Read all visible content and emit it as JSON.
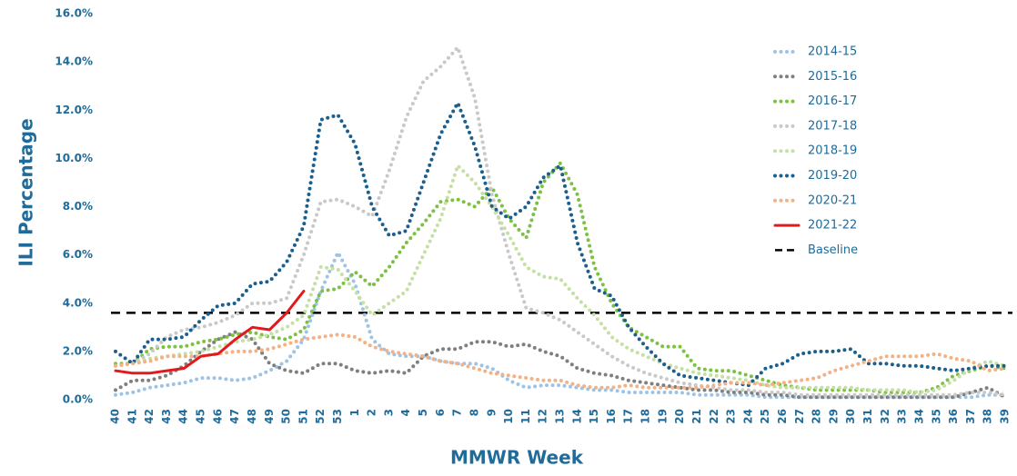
{
  "chart_data": {
    "type": "line",
    "y_label": "ILI Percentage",
    "x_label": "MMWR Week",
    "categories": [
      "40",
      "41",
      "42",
      "43",
      "44",
      "45",
      "46",
      "47",
      "48",
      "49",
      "50",
      "51",
      "52",
      "53",
      "1",
      "2",
      "3",
      "4",
      "5",
      "6",
      "7",
      "8",
      "9",
      "10",
      "11",
      "12",
      "13",
      "14",
      "15",
      "16",
      "17",
      "18",
      "19",
      "20",
      "21",
      "22",
      "23",
      "24",
      "25",
      "26",
      "27",
      "28",
      "29",
      "30",
      "31",
      "32",
      "33",
      "34",
      "35",
      "36",
      "37",
      "38",
      "39"
    ],
    "ylim": [
      0,
      16
    ],
    "yticks": [
      {
        "value": 0,
        "label": "0.0%"
      },
      {
        "value": 2,
        "label": "2.0%"
      },
      {
        "value": 4,
        "label": "4.0%"
      },
      {
        "value": 6,
        "label": "6.0%"
      },
      {
        "value": 8,
        "label": "8.0%"
      },
      {
        "value": 10,
        "label": "10.0%"
      },
      {
        "value": 12,
        "label": "12.0%"
      },
      {
        "value": 14,
        "label": "14.0%"
      },
      {
        "value": 16,
        "label": "16.0%"
      }
    ],
    "series": [
      {
        "name": "2014-15",
        "color": "#9dc3e6",
        "style": "dotted",
        "values": [
          0.2,
          0.3,
          0.5,
          0.6,
          0.7,
          0.9,
          0.9,
          0.8,
          0.9,
          1.2,
          1.6,
          2.5,
          4.5,
          6.1,
          4.8,
          2.5,
          1.9,
          1.8,
          1.8,
          1.6,
          1.5,
          1.5,
          1.3,
          0.8,
          0.5,
          0.6,
          0.6,
          0.5,
          0.4,
          0.4,
          0.3,
          0.3,
          0.3,
          0.3,
          0.2,
          0.2,
          0.2,
          0.2,
          0.1,
          0.1,
          0.1,
          0.1,
          0.1,
          0.1,
          0.1,
          0.1,
          0.1,
          0.1,
          0.1,
          0.1,
          0.1,
          0.2,
          0.2
        ]
      },
      {
        "name": "2015-16",
        "color": "#7f7f7f",
        "style": "dotted",
        "values": [
          0.4,
          0.8,
          0.8,
          1.0,
          1.4,
          2.0,
          2.5,
          2.8,
          2.5,
          1.5,
          1.2,
          1.1,
          1.5,
          1.5,
          1.2,
          1.1,
          1.2,
          1.1,
          1.8,
          2.1,
          2.1,
          2.4,
          2.4,
          2.2,
          2.3,
          2.0,
          1.8,
          1.3,
          1.1,
          1.0,
          0.8,
          0.7,
          0.6,
          0.5,
          0.4,
          0.4,
          0.3,
          0.3,
          0.2,
          0.2,
          0.1,
          0.1,
          0.1,
          0.1,
          0.1,
          0.1,
          0.1,
          0.1,
          0.1,
          0.1,
          0.3,
          0.5,
          0.1
        ]
      },
      {
        "name": "2016-17",
        "color": "#7cc142",
        "style": "dotted",
        "values": [
          1.5,
          1.5,
          2.1,
          2.2,
          2.2,
          2.4,
          2.5,
          2.7,
          2.8,
          2.6,
          2.5,
          2.9,
          4.5,
          4.6,
          5.3,
          4.7,
          5.5,
          6.5,
          7.3,
          8.2,
          8.3,
          8.0,
          8.8,
          7.5,
          6.7,
          9.0,
          9.8,
          8.5,
          5.5,
          4.0,
          3.0,
          2.6,
          2.2,
          2.2,
          1.3,
          1.2,
          1.2,
          1.0,
          0.8,
          0.6,
          0.5,
          0.4,
          0.4,
          0.4,
          0.4,
          0.3,
          0.3,
          0.3,
          0.5,
          1.0,
          1.2,
          1.4,
          1.3
        ]
      },
      {
        "name": "2017-18",
        "color": "#c9c9c9",
        "style": "dotted",
        "values": [
          1.4,
          1.5,
          1.9,
          2.6,
          2.9,
          3.0,
          3.2,
          3.5,
          4.0,
          4.0,
          4.2,
          6.0,
          8.2,
          8.3,
          8.0,
          7.6,
          9.5,
          11.7,
          13.2,
          13.8,
          14.6,
          12.5,
          8.5,
          6.0,
          3.8,
          3.6,
          3.3,
          2.8,
          2.3,
          1.8,
          1.4,
          1.1,
          0.9,
          0.7,
          0.6,
          0.5,
          0.4,
          0.4,
          0.3,
          0.3,
          0.2,
          0.2,
          0.2,
          0.2,
          0.2,
          0.2,
          0.2,
          0.2,
          0.2,
          0.2,
          0.3,
          0.3,
          0.2
        ]
      },
      {
        "name": "2018-19",
        "color": "#c5e0a5",
        "style": "dotted",
        "values": [
          1.4,
          1.5,
          1.7,
          1.8,
          1.9,
          2.0,
          2.2,
          2.4,
          2.5,
          2.7,
          3.0,
          3.5,
          5.5,
          5.4,
          4.5,
          3.5,
          4.0,
          4.5,
          6.0,
          7.5,
          9.7,
          9.0,
          8.0,
          6.8,
          5.5,
          5.1,
          5.0,
          4.2,
          3.5,
          2.6,
          2.1,
          1.8,
          1.5,
          1.3,
          1.1,
          1.0,
          0.9,
          0.8,
          0.6,
          0.5,
          0.5,
          0.5,
          0.5,
          0.5,
          0.4,
          0.4,
          0.4,
          0.3,
          0.4,
          0.8,
          1.3,
          1.6,
          1.4
        ]
      },
      {
        "name": "2019-20",
        "color": "#1a5f8e",
        "style": "dotted",
        "values": [
          2.0,
          1.5,
          2.5,
          2.5,
          2.6,
          3.3,
          3.9,
          4.0,
          4.8,
          4.9,
          5.7,
          7.2,
          11.6,
          11.8,
          10.6,
          8.0,
          6.8,
          7.0,
          9.0,
          11.0,
          12.3,
          10.5,
          8.0,
          7.5,
          8.0,
          9.2,
          9.7,
          6.5,
          4.6,
          4.3,
          3.0,
          2.2,
          1.5,
          1.0,
          0.9,
          0.8,
          0.7,
          0.6,
          1.3,
          1.5,
          1.9,
          2.0,
          2.0,
          2.1,
          1.5,
          1.5,
          1.4,
          1.4,
          1.3,
          1.2,
          1.3,
          1.4,
          1.4
        ]
      },
      {
        "name": "2020-21",
        "color": "#f4b183",
        "style": "dotted",
        "values": [
          1.4,
          1.5,
          1.6,
          1.8,
          1.8,
          1.8,
          1.9,
          2.0,
          2.0,
          2.1,
          2.3,
          2.5,
          2.6,
          2.7,
          2.6,
          2.2,
          2.0,
          1.9,
          1.8,
          1.6,
          1.5,
          1.3,
          1.1,
          1.0,
          0.9,
          0.8,
          0.8,
          0.6,
          0.5,
          0.5,
          0.6,
          0.5,
          0.5,
          0.5,
          0.5,
          0.6,
          0.7,
          0.7,
          0.6,
          0.7,
          0.8,
          0.9,
          1.2,
          1.4,
          1.6,
          1.8,
          1.8,
          1.8,
          1.9,
          1.7,
          1.6,
          1.2,
          1.3
        ]
      },
      {
        "name": "2021-22",
        "color": "#e3191c",
        "style": "solid",
        "values": [
          1.2,
          1.1,
          1.1,
          1.2,
          1.3,
          1.8,
          1.9,
          2.5,
          3.0,
          2.9,
          3.6,
          4.5,
          null,
          null,
          null,
          null,
          null,
          null,
          null,
          null,
          null,
          null,
          null,
          null,
          null,
          null,
          null,
          null,
          null,
          null,
          null,
          null,
          null,
          null,
          null,
          null,
          null,
          null,
          null,
          null,
          null,
          null,
          null,
          null,
          null,
          null,
          null,
          null,
          null,
          null,
          null,
          null,
          null
        ]
      }
    ],
    "baseline": {
      "name": "Baseline",
      "value": 3.6,
      "color": "#000000"
    }
  }
}
